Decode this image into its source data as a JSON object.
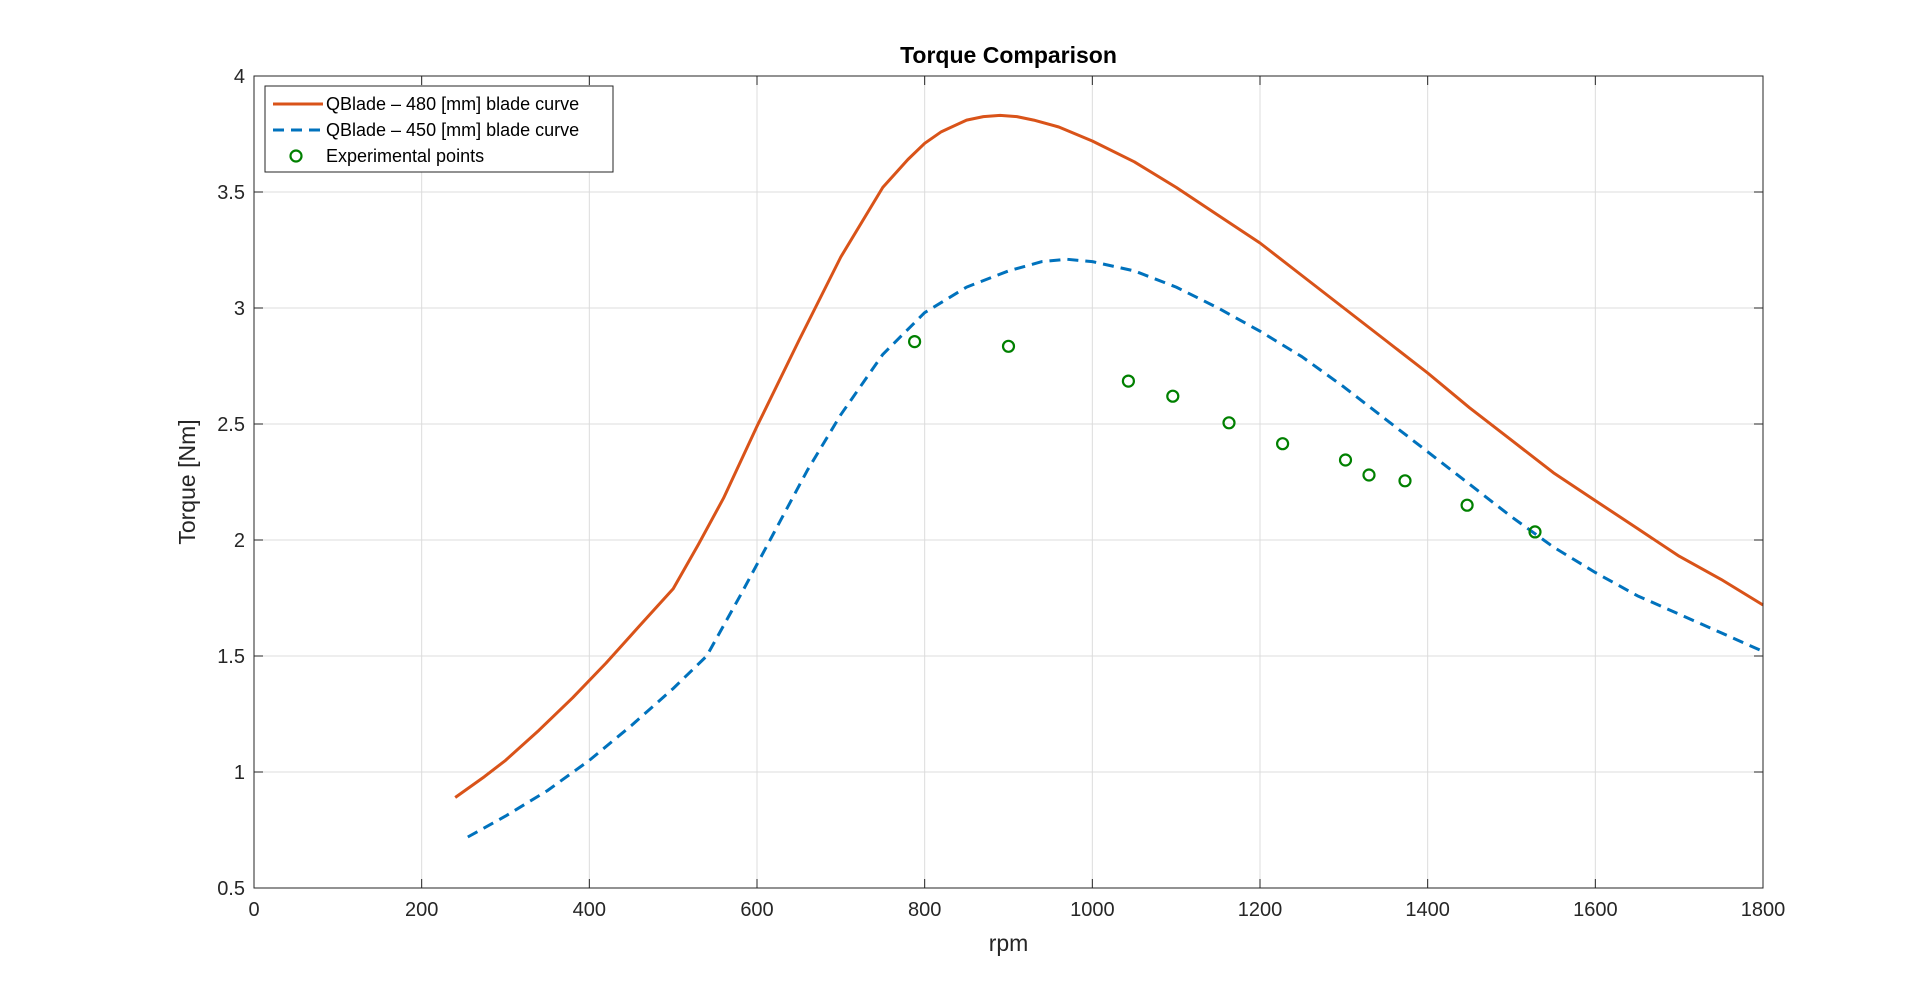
{
  "chart_data": {
    "type": "line",
    "title": "Torque Comparison",
    "xlabel": "rpm",
    "ylabel": "Torque [Nm]",
    "xlim": [
      0,
      1800
    ],
    "ylim": [
      0.5,
      4
    ],
    "xticks": [
      0,
      200,
      400,
      600,
      800,
      1000,
      1200,
      1400,
      1600,
      1800
    ],
    "yticks": [
      0.5,
      1,
      1.5,
      2,
      2.5,
      3,
      3.5,
      4
    ],
    "xtick_labels": [
      "0",
      "200",
      "400",
      "600",
      "800",
      "1000",
      "1200",
      "1400",
      "1600",
      "1800"
    ],
    "ytick_labels": [
      "0.5",
      "1",
      "1.5",
      "2",
      "2.5",
      "3",
      "3.5",
      "4"
    ],
    "grid": true,
    "legend_position": "top-left",
    "series": [
      {
        "name": "QBlade – 480 [mm] blade curve",
        "style": "solid",
        "marker": "none",
        "color": "#D95319",
        "x": [
          240,
          275,
          300,
          340,
          380,
          420,
          460,
          500,
          530,
          560,
          600,
          650,
          700,
          750,
          780,
          800,
          820,
          850,
          870,
          890,
          910,
          930,
          960,
          1000,
          1050,
          1100,
          1150,
          1200,
          1250,
          1300,
          1350,
          1400,
          1450,
          1500,
          1550,
          1600,
          1650,
          1700,
          1750,
          1800
        ],
        "y": [
          0.89,
          0.98,
          1.05,
          1.18,
          1.32,
          1.47,
          1.63,
          1.79,
          1.98,
          2.18,
          2.49,
          2.86,
          3.22,
          3.52,
          3.64,
          3.71,
          3.76,
          3.81,
          3.825,
          3.83,
          3.825,
          3.81,
          3.78,
          3.72,
          3.63,
          3.52,
          3.4,
          3.28,
          3.14,
          3.0,
          2.86,
          2.72,
          2.57,
          2.43,
          2.29,
          2.17,
          2.05,
          1.93,
          1.83,
          1.72
        ]
      },
      {
        "name": "QBlade – 450 [mm] blade curve",
        "style": "dashed",
        "marker": "none",
        "color": "#0072BD",
        "x": [
          255,
          300,
          350,
          400,
          450,
          500,
          540,
          580,
          620,
          660,
          700,
          750,
          800,
          850,
          900,
          940,
          970,
          1000,
          1050,
          1100,
          1150,
          1200,
          1250,
          1300,
          1350,
          1400,
          1450,
          1500,
          1550,
          1600,
          1650,
          1700,
          1750,
          1800
        ],
        "y": [
          0.72,
          0.81,
          0.92,
          1.05,
          1.2,
          1.36,
          1.5,
          1.76,
          2.03,
          2.3,
          2.54,
          2.8,
          2.98,
          3.09,
          3.16,
          3.2,
          3.21,
          3.2,
          3.16,
          3.09,
          3.0,
          2.9,
          2.79,
          2.66,
          2.52,
          2.38,
          2.24,
          2.1,
          1.97,
          1.86,
          1.76,
          1.68,
          1.6,
          1.52
        ]
      },
      {
        "name": "Experimental points",
        "style": "none",
        "marker": "circle",
        "color": "#008000",
        "x": [
          788,
          900,
          1043,
          1096,
          1163,
          1227,
          1302,
          1330,
          1373,
          1447,
          1528
        ],
        "y": [
          2.855,
          2.835,
          2.685,
          2.62,
          2.505,
          2.415,
          2.345,
          2.28,
          2.255,
          2.15,
          2.035
        ]
      }
    ]
  }
}
